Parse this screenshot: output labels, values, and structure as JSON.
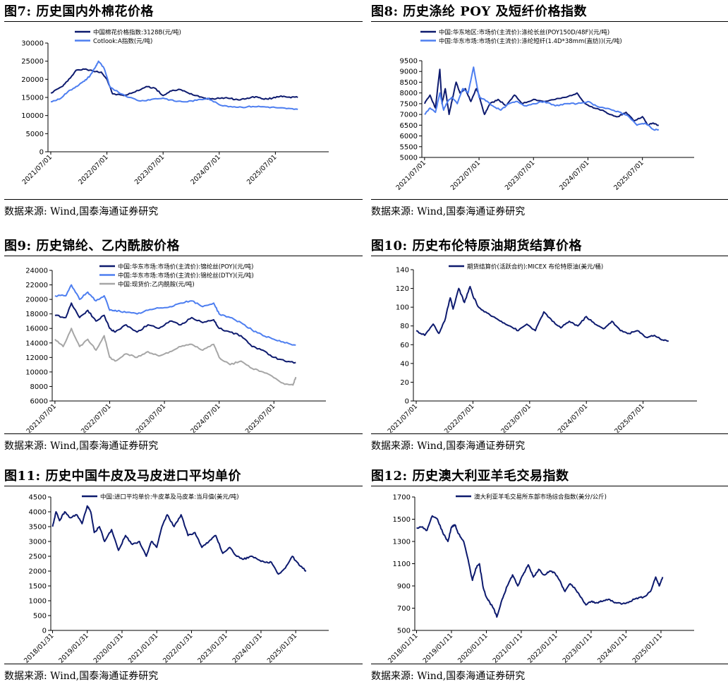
{
  "charts": [
    {
      "id": "fig7",
      "title": "图7: 历史国内外棉花价格",
      "source": "数据来源: Wind,国泰海通证券研究",
      "chart_data": {
        "type": "line",
        "ylim": [
          0,
          30000
        ],
        "yticks": [
          "0",
          "5000",
          "10000",
          "15000",
          "20000",
          "25000",
          "30000"
        ],
        "xticks": [
          "2021/07/01",
          "2022/07/01",
          "2023/07/01",
          "2024/07/01",
          "2025/07/01"
        ],
        "series": [
          {
            "name": "中国棉花价格指数:3128B(元/吨)",
            "color": "#0d1a6e",
            "x": [
              0,
              0.2,
              0.3,
              0.45,
              0.6,
              0.75,
              0.9,
              1.0,
              1.1,
              1.3,
              1.5,
              1.7,
              1.85,
              2.0,
              2.15,
              2.3,
              2.45,
              2.6,
              2.75,
              2.9,
              3.05,
              3.2,
              3.35,
              3.5,
              3.65,
              3.8,
              3.95,
              4.1,
              4.25,
              4.4
            ],
            "y": [
              16200,
              18000,
              19500,
              22500,
              22800,
              22300,
              22000,
              20000,
              16000,
              15500,
              16500,
              18000,
              17600,
              15500,
              16800,
              17200,
              16200,
              15500,
              14800,
              14600,
              14900,
              14700,
              14300,
              14800,
              15200,
              14500,
              14800,
              15400,
              15100,
              15000
            ]
          },
          {
            "name": "Cotlook:A指数(元/吨)",
            "color": "#4d7ef0",
            "x": [
              0,
              0.15,
              0.3,
              0.45,
              0.6,
              0.7,
              0.8,
              0.85,
              0.95,
              1.05,
              1.2,
              1.4,
              1.6,
              1.8,
              2.0,
              2.2,
              2.4,
              2.6,
              2.8,
              3.0,
              3.2,
              3.4,
              3.6,
              3.8,
              4.0,
              4.2,
              4.4
            ],
            "y": [
              13800,
              14500,
              16500,
              18000,
              19500,
              21000,
              23500,
              25000,
              23000,
              18000,
              16500,
              15000,
              14000,
              14500,
              14800,
              14000,
              13800,
              14200,
              14800,
              13000,
              12500,
              12300,
              12500,
              12400,
              12200,
              11900,
              11700
            ]
          }
        ]
      }
    },
    {
      "id": "fig8",
      "title": "图8: 历史涤纶 POY 及短纤价格指数",
      "source": "数据来源: Wind,国泰海通证券研究",
      "chart_data": {
        "type": "line",
        "ylim": [
          5000,
          9500
        ],
        "yticks": [
          "5000",
          "5500",
          "6000",
          "6500",
          "7000",
          "7500",
          "8000",
          "8500",
          "9000",
          "9500"
        ],
        "xticks": [
          "2021/07/01",
          "2022/07/01",
          "2023/07/01",
          "2024/07/01",
          "2025/07/01"
        ],
        "series": [
          {
            "name": "中国:华东地区:市场价(主流价):涤纶长丝(POY150D/48F)(元/吨)",
            "color": "#0d1a6e",
            "x": [
              0,
              0.1,
              0.2,
              0.28,
              0.32,
              0.38,
              0.45,
              0.5,
              0.58,
              0.65,
              0.75,
              0.85,
              0.95,
              1.0,
              1.1,
              1.2,
              1.35,
              1.5,
              1.65,
              1.8,
              2.0,
              2.2,
              2.4,
              2.6,
              2.8,
              2.95,
              3.1,
              3.25,
              3.4,
              3.55,
              3.7,
              3.85,
              4.0,
              4.1,
              4.2,
              4.3
            ],
            "y": [
              7500,
              7900,
              7300,
              9100,
              7500,
              8200,
              7000,
              7600,
              8500,
              8000,
              8200,
              7600,
              8200,
              7900,
              7000,
              7500,
              7700,
              7400,
              7900,
              7500,
              7700,
              7600,
              7700,
              7800,
              8000,
              7500,
              7300,
              7200,
              7000,
              6900,
              7100,
              6700,
              6900,
              6500,
              6600,
              6500
            ]
          },
          {
            "name": "中国:华东市场:市场价(主流价):涤纶短纤(1.4D*38mm(直纺))(元/吨)",
            "color": "#4d7ef0",
            "x": [
              0,
              0.1,
              0.2,
              0.28,
              0.35,
              0.42,
              0.5,
              0.6,
              0.7,
              0.8,
              0.9,
              1.0,
              1.1,
              1.25,
              1.4,
              1.55,
              1.7,
              1.85,
              2.0,
              2.2,
              2.4,
              2.6,
              2.8,
              3.0,
              3.15,
              3.3,
              3.45,
              3.6,
              3.75,
              3.9,
              4.05,
              4.2,
              4.3
            ],
            "y": [
              7000,
              7300,
              7100,
              8000,
              7200,
              7600,
              7800,
              7500,
              8200,
              8000,
              9200,
              7800,
              7700,
              7400,
              7200,
              7500,
              7600,
              7400,
              7500,
              7600,
              7400,
              7500,
              7500,
              7600,
              7400,
              7300,
              7200,
              7100,
              6900,
              6500,
              6600,
              6300,
              6300
            ]
          }
        ]
      }
    },
    {
      "id": "fig9",
      "title": "图9: 历史锦纶、乙内酰胺价格",
      "source": "数据来源: Wind,国泰海通证券研究",
      "chart_data": {
        "type": "line",
        "ylim": [
          6000,
          24000
        ],
        "yticks": [
          "6000",
          "8000",
          "10000",
          "12000",
          "14000",
          "16000",
          "18000",
          "20000",
          "22000",
          "24000"
        ],
        "xticks": [
          "2021/07/01",
          "2022/07/01",
          "2023/07/01",
          "2024/07/01",
          "2025/07/01"
        ],
        "series": [
          {
            "name": "中国:华东市场:市场价(主流价):锦纶丝(POY)(元/吨)",
            "color": "#0d1a6e",
            "x": [
              0,
              0.2,
              0.3,
              0.45,
              0.6,
              0.75,
              0.9,
              1.0,
              1.1,
              1.3,
              1.5,
              1.7,
              1.9,
              2.1,
              2.3,
              2.5,
              2.7,
              2.9,
              3.0,
              3.2,
              3.4,
              3.6,
              3.8,
              4.0,
              4.2,
              4.4
            ],
            "y": [
              17800,
              17500,
              19500,
              17500,
              18500,
              17000,
              17800,
              16000,
              15500,
              16500,
              15500,
              16500,
              16000,
              17000,
              16500,
              17500,
              16800,
              17200,
              16000,
              15500,
              15000,
              13500,
              13000,
              12000,
              11500,
              11300
            ]
          },
          {
            "name": "中国:华东市场:市场价(主流价):锦纶丝(DTY)(元/吨)",
            "color": "#4d7ef0",
            "x": [
              0,
              0.2,
              0.3,
              0.45,
              0.6,
              0.75,
              0.9,
              1.0,
              1.1,
              1.3,
              1.5,
              1.7,
              1.9,
              2.1,
              2.3,
              2.5,
              2.7,
              2.9,
              3.0,
              3.2,
              3.4,
              3.6,
              3.8,
              4.0,
              4.2,
              4.4
            ],
            "y": [
              20500,
              20500,
              22000,
              20000,
              21000,
              19800,
              20500,
              18500,
              18500,
              18200,
              18000,
              18500,
              18800,
              19000,
              19500,
              19800,
              19000,
              19500,
              18000,
              17500,
              16800,
              15800,
              15000,
              14500,
              14000,
              13700
            ]
          },
          {
            "name": "中国:现货价:乙内酰胺(元/吨)",
            "color": "#a6a6a6",
            "x": [
              0,
              0.15,
              0.3,
              0.45,
              0.6,
              0.75,
              0.9,
              1.0,
              1.1,
              1.3,
              1.5,
              1.7,
              1.9,
              2.1,
              2.3,
              2.5,
              2.7,
              2.9,
              3.0,
              3.2,
              3.4,
              3.6,
              3.8,
              4.0,
              4.2,
              4.35,
              4.4
            ],
            "y": [
              14500,
              13500,
              16000,
              13500,
              14500,
              13000,
              15000,
              12000,
              11500,
              12500,
              12000,
              12800,
              12200,
              12800,
              13500,
              13800,
              13000,
              13800,
              12000,
              11000,
              11500,
              10500,
              10000,
              9200,
              8300,
              8200,
              9300
            ]
          }
        ]
      }
    },
    {
      "id": "fig10",
      "title": "图10: 历史布伦特原油期货结算价格",
      "source": "数据来源: Wind,国泰海通证券研究",
      "chart_data": {
        "type": "line",
        "ylim": [
          0,
          140
        ],
        "yticks": [
          "0",
          "20",
          "40",
          "60",
          "80",
          "100",
          "120",
          "140"
        ],
        "xticks": [
          "2021/07/01",
          "2022/07/01",
          "2023/07/01",
          "2024/07/01",
          "2025/07/01"
        ],
        "series": [
          {
            "name": "期货结算价(活跃合约):MICEX 布伦特原油(美元/桶)",
            "color": "#0d1a6e",
            "x": [
              0,
              0.15,
              0.3,
              0.4,
              0.5,
              0.6,
              0.65,
              0.75,
              0.85,
              0.95,
              1.0,
              1.1,
              1.2,
              1.35,
              1.5,
              1.65,
              1.8,
              1.95,
              2.1,
              2.25,
              2.4,
              2.55,
              2.7,
              2.85,
              3.0,
              3.15,
              3.3,
              3.45,
              3.6,
              3.75,
              3.9,
              4.05,
              4.2,
              4.35,
              4.45
            ],
            "y": [
              75,
              70,
              82,
              72,
              85,
              110,
              98,
              120,
              105,
              122,
              112,
              100,
              95,
              90,
              85,
              80,
              75,
              82,
              75,
              95,
              85,
              78,
              85,
              80,
              90,
              82,
              77,
              85,
              75,
              72,
              75,
              68,
              70,
              65,
              64
            ]
          }
        ]
      }
    },
    {
      "id": "fig11",
      "title": "图11: 历史中国牛皮及马皮进口平均单价",
      "source": "数据来源: Wind,国泰海通证券研究",
      "chart_data": {
        "type": "line",
        "ylim": [
          0,
          4500
        ],
        "yticks": [
          "0",
          "500",
          "1000",
          "1500",
          "2000",
          "2500",
          "3000",
          "3500",
          "4000",
          "4500"
        ],
        "xticks": [
          "2018/01/31",
          "2019/01/31",
          "2020/01/31",
          "2021/01/31",
          "2022/01/31",
          "2023/01/31",
          "2024/01/31",
          "2025/01/31"
        ],
        "series": [
          {
            "name": "中国:进口平均单价:牛皮革及马皮革:当月值(美元/吨)",
            "color": "#0d1a6e",
            "x": [
              0,
              0.1,
              0.2,
              0.35,
              0.5,
              0.7,
              0.85,
              1.0,
              1.1,
              1.2,
              1.35,
              1.5,
              1.7,
              1.9,
              2.1,
              2.3,
              2.5,
              2.7,
              2.85,
              3.0,
              3.15,
              3.3,
              3.5,
              3.7,
              3.9,
              4.1,
              4.3,
              4.5,
              4.7,
              4.9,
              5.1,
              5.3,
              5.5,
              5.7,
              5.9,
              6.1,
              6.3,
              6.5,
              6.7,
              6.9,
              7.1,
              7.3
            ],
            "y": [
              3500,
              4000,
              3700,
              4000,
              3800,
              3900,
              3600,
              4200,
              4000,
              3300,
              3500,
              3000,
              3400,
              2700,
              3200,
              2900,
              3000,
              2500,
              3000,
              2800,
              3500,
              3900,
              3500,
              3900,
              3200,
              3300,
              2800,
              3000,
              3200,
              2600,
              2800,
              2500,
              2400,
              2500,
              2400,
              2300,
              2300,
              1900,
              2100,
              2500,
              2200,
              2000
            ]
          }
        ]
      }
    },
    {
      "id": "fig12",
      "title": "图12: 历史澳大利亚羊毛交易指数",
      "source": "数据来源: Wind,国泰海通证券研究",
      "chart_data": {
        "type": "line",
        "ylim": [
          500,
          1700
        ],
        "yticks": [
          "500",
          "700",
          "900",
          "1100",
          "1300",
          "1500",
          "1700"
        ],
        "xticks": [
          "2018/01/11",
          "2019/01/11",
          "2020/01/11",
          "2021/01/11",
          "2022/01/11",
          "2023/01/11",
          "2024/01/11",
          "2025/01/11"
        ],
        "series": [
          {
            "name": "澳大利亚羊毛交易所东部市场综合指数(美分/公斤)",
            "color": "#0d1a6e",
            "x": [
              0,
              0.15,
              0.3,
              0.45,
              0.6,
              0.75,
              0.9,
              1.0,
              1.1,
              1.2,
              1.35,
              1.5,
              1.6,
              1.7,
              1.8,
              1.9,
              2.0,
              2.1,
              2.2,
              2.3,
              2.45,
              2.6,
              2.75,
              2.9,
              3.05,
              3.2,
              3.35,
              3.5,
              3.65,
              3.8,
              3.95,
              4.1,
              4.25,
              4.4,
              4.55,
              4.7,
              4.85,
              5.0,
              5.15,
              5.3,
              5.5,
              5.7,
              5.9,
              6.1,
              6.3,
              6.5,
              6.7,
              6.85,
              6.95,
              7.05
            ],
            "y": [
              1420,
              1430,
              1400,
              1530,
              1500,
              1380,
              1300,
              1430,
              1450,
              1370,
              1300,
              1100,
              950,
              1060,
              1100,
              900,
              800,
              750,
              700,
              620,
              780,
              900,
              1000,
              900,
              1000,
              1090,
              980,
              1050,
              1000,
              1030,
              1020,
              950,
              850,
              920,
              870,
              800,
              730,
              760,
              750,
              760,
              780,
              750,
              740,
              760,
              790,
              800,
              850,
              980,
              900,
              980
            ]
          }
        ]
      }
    }
  ]
}
